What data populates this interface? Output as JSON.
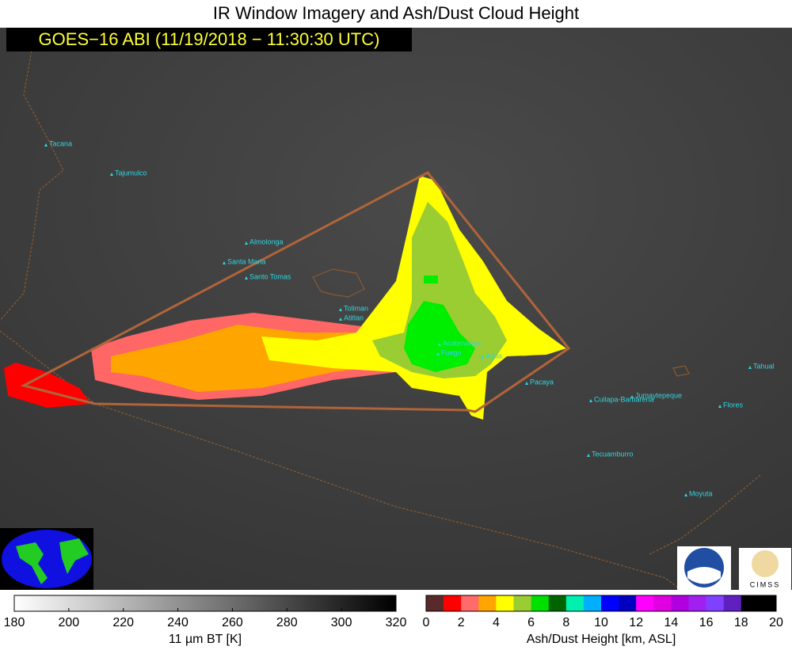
{
  "title": "IR Window Imagery and Ash/Dust Cloud Height",
  "subtitle": "GOES−16 ABI (11/19/2018 − 11:30:30 UTC)",
  "volcanoes": [
    "Tacana",
    "Tajumulco",
    "Almolonga",
    "Santa Maria",
    "Santo Tomas",
    "Toliman",
    "Atitlan",
    "Acatenango",
    "Fuego",
    "Agua",
    "Pacaya",
    "Cuilapa-Barbarena",
    "Jumaytepeque",
    "Tecuamburro",
    "Tahual",
    "Flores",
    "Moyuta"
  ],
  "colorbar_bt": {
    "ticks": [
      180,
      200,
      220,
      240,
      260,
      280,
      300,
      320
    ],
    "label": "11 µm BT [K]"
  },
  "colorbar_ash": {
    "ticks": [
      0,
      2,
      4,
      6,
      8,
      10,
      12,
      14,
      16,
      18,
      20
    ],
    "label": "Ash/Dust Height [km, ASL]"
  },
  "logos": {
    "cimss": "CIMSS"
  }
}
